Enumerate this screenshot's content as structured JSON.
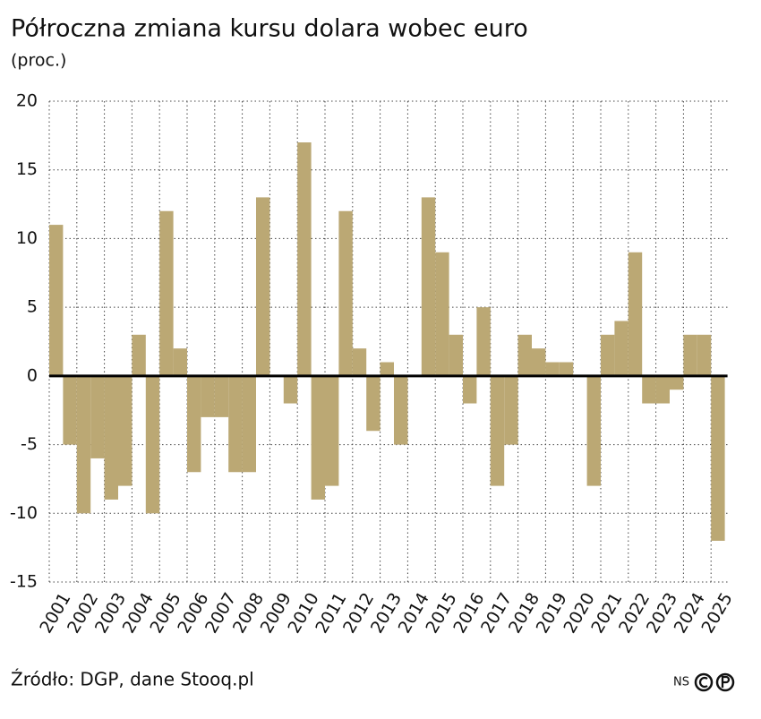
{
  "chart_data": {
    "type": "bar",
    "title": "Półroczna zmiana kursu dolara wobec euro",
    "subtitle": "(proc.)",
    "source": "Źródło: DGP, dane Stooq.pl",
    "logo": "NS",
    "categories": [
      "2001",
      null,
      "2002",
      null,
      "2003",
      null,
      "2004",
      null,
      "2005",
      null,
      "2006",
      null,
      "2007",
      null,
      "2008",
      null,
      "2009",
      null,
      "2010",
      null,
      "2011",
      null,
      "2012",
      null,
      "2013",
      null,
      "2014",
      null,
      "2015",
      null,
      "2016",
      null,
      "2017",
      null,
      "2018",
      null,
      "2019",
      null,
      "2020",
      null,
      "2021",
      null,
      "2022",
      null,
      "2023",
      null,
      "2024",
      null,
      "2025"
    ],
    "values": [
      11,
      -5,
      -10,
      -6,
      -9,
      -8,
      3,
      -10,
      12,
      2,
      -7,
      -3,
      -3,
      -7,
      -7,
      13,
      0,
      -2,
      17,
      -9,
      -8,
      12,
      2,
      -4,
      1,
      -5,
      0,
      13,
      9,
      3,
      -2,
      5,
      -8,
      -5,
      3,
      2,
      1,
      1,
      0,
      -8,
      3,
      4,
      9,
      -2,
      -2,
      -1,
      3,
      3,
      -12
    ],
    "color": "#bba874",
    "ylim": [
      -15,
      20
    ],
    "yticks": [
      -15,
      -10,
      -5,
      0,
      5,
      10,
      15,
      20
    ],
    "grid": true
  }
}
